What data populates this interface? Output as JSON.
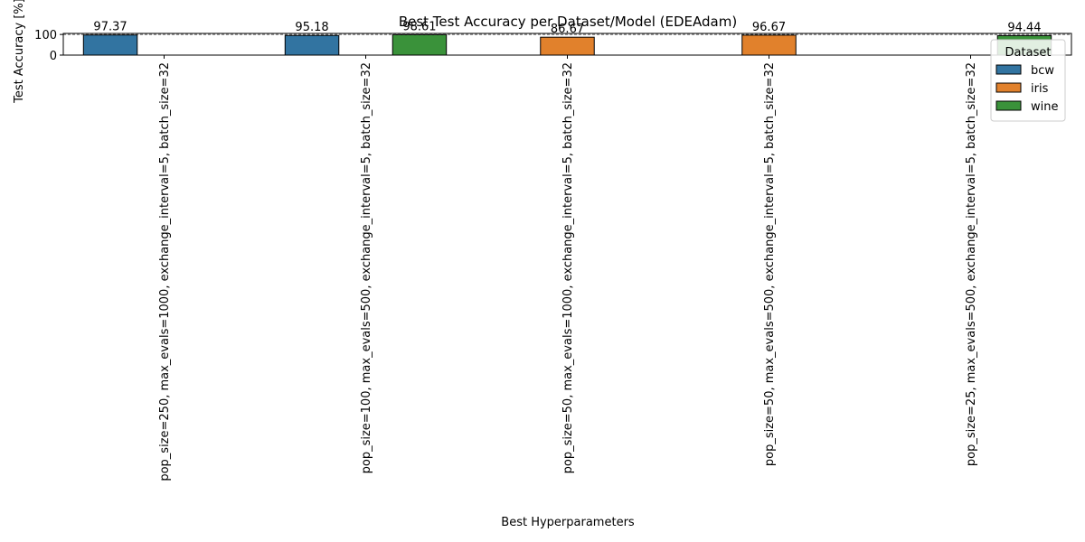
{
  "chart_data": {
    "type": "bar",
    "title": "Best Test Accuracy per Dataset/Model (EDEAdam)",
    "xlabel": "Best Hyperparameters",
    "ylabel": "Test Accuracy [%]",
    "ylim": [
      0,
      105
    ],
    "yticks": [
      "0",
      "100"
    ],
    "categories": [
      "pop_size=250, max_evals=1000, exchange_interval=5, batch_size=32",
      "pop_size=100, max_evals=500, exchange_interval=5, batch_size=32",
      "pop_size=50, max_evals=1000, exchange_interval=5, batch_size=32",
      "pop_size=50, max_evals=500, exchange_interval=5, batch_size=32",
      "pop_size=25, max_evals=500, exchange_interval=5, batch_size=32"
    ],
    "series": [
      {
        "name": "bcw",
        "color": "#3274a1",
        "values": [
          97.37,
          95.18,
          null,
          null,
          null
        ],
        "labels": [
          "97.37",
          "95.18",
          null,
          null,
          null
        ]
      },
      {
        "name": "iris",
        "color": "#e1812c",
        "values": [
          null,
          null,
          86.67,
          96.67,
          null
        ],
        "labels": [
          null,
          null,
          "86.67",
          "96.67",
          null
        ]
      },
      {
        "name": "wine",
        "color": "#3a923a",
        "values": [
          null,
          98.61,
          null,
          null,
          94.44
        ],
        "labels": [
          null,
          "98.61",
          null,
          null,
          "94.44"
        ]
      }
    ],
    "reference_line": 100,
    "grid": false,
    "legend": {
      "title": "Dataset",
      "placement": "top-right"
    }
  }
}
